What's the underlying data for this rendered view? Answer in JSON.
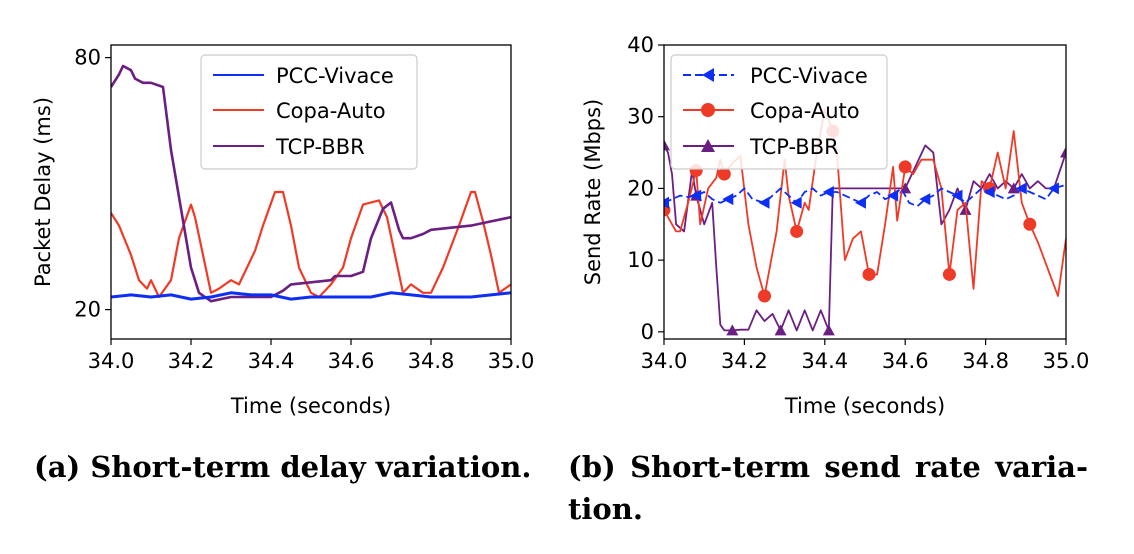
{
  "colors": {
    "pcc": "#0d2ef7",
    "copa": "#ef3a27",
    "bbr": "#6c1f82"
  },
  "captions": {
    "a": "(a) Short-term delay variation.",
    "b_line1": "(b) Short-term send rate varia-",
    "b_line2": "tion."
  },
  "chart_data": [
    {
      "type": "line",
      "xlabel": "Time (seconds)",
      "ylabel": "Packet Delay (ms)",
      "xlim": [
        34.0,
        35.0
      ],
      "ylim": [
        13,
        83
      ],
      "x_ticks": [
        "34.0",
        "34.2",
        "34.4",
        "34.6",
        "34.8",
        "35.0"
      ],
      "y_ticks": [
        "20",
        "80"
      ],
      "legend": {
        "position": "top-center"
      },
      "series": [
        {
          "name": "PCC-Vivace",
          "x": [
            34.0,
            34.05,
            34.1,
            34.15,
            34.2,
            34.25,
            34.3,
            34.35,
            34.4,
            34.45,
            34.5,
            34.55,
            34.6,
            34.65,
            34.7,
            34.75,
            34.8,
            34.85,
            34.9,
            34.95,
            35.0
          ],
          "y": [
            23,
            23.5,
            23,
            23.5,
            22.5,
            23,
            24,
            23.5,
            23.5,
            22.5,
            23,
            23,
            23,
            23,
            24,
            23.5,
            23,
            23,
            23,
            23.5,
            24
          ]
        },
        {
          "name": "Copa-Auto",
          "x": [
            34.0,
            34.02,
            34.05,
            34.07,
            34.09,
            34.1,
            34.12,
            34.15,
            34.17,
            34.2,
            34.21,
            34.23,
            34.25,
            34.27,
            34.3,
            34.32,
            34.36,
            34.38,
            34.41,
            34.43,
            34.45,
            34.47,
            34.5,
            34.52,
            34.55,
            34.58,
            34.6,
            34.63,
            34.67,
            34.69,
            34.71,
            34.73,
            34.75,
            34.78,
            34.8,
            34.83,
            34.87,
            34.9,
            34.91,
            34.93,
            34.95,
            34.97,
            35.0
          ],
          "y": [
            43,
            40,
            33,
            27,
            25,
            27,
            23,
            27,
            37,
            45,
            42,
            33,
            24,
            25,
            27,
            26,
            34,
            40,
            48,
            48,
            40,
            30,
            24,
            23,
            26,
            30,
            37,
            45,
            46,
            42,
            33,
            24,
            26,
            24,
            24,
            30,
            40,
            48,
            48,
            41,
            33,
            24,
            26
          ]
        },
        {
          "name": "TCP-BBR",
          "x": [
            34.0,
            34.02,
            34.03,
            34.05,
            34.06,
            34.08,
            34.1,
            34.13,
            34.15,
            34.2,
            34.22,
            34.25,
            34.3,
            34.4,
            34.43,
            34.45,
            34.5,
            34.55,
            34.56,
            34.6,
            34.63,
            34.65,
            34.68,
            34.7,
            34.72,
            34.73,
            34.75,
            34.78,
            34.8,
            34.85,
            34.9,
            34.95,
            35.0
          ],
          "y": [
            73,
            76,
            78,
            77,
            75,
            74,
            74,
            73,
            58,
            30,
            24,
            22,
            23,
            23,
            24.5,
            26,
            26.5,
            27,
            28,
            28,
            29,
            37,
            44,
            45.5,
            39,
            37,
            37,
            38,
            39,
            39.5,
            40,
            41,
            42
          ]
        }
      ]
    },
    {
      "type": "line",
      "xlabel": "Time (seconds)",
      "ylabel": "Send Rate (Mbps)",
      "xlim": [
        34.0,
        35.0
      ],
      "ylim": [
        -1,
        40
      ],
      "x_ticks": [
        "34.0",
        "34.2",
        "34.4",
        "34.6",
        "34.8",
        "35.0"
      ],
      "y_ticks": [
        "0",
        "10",
        "20",
        "30",
        "40"
      ],
      "legend": {
        "position": "top-left"
      },
      "series": [
        {
          "name": "PCC-Vivace",
          "marker": "triangle-left",
          "x": [
            34.0,
            34.02,
            34.04,
            34.06,
            34.08,
            34.1,
            34.12,
            34.14,
            34.16,
            34.18,
            34.2,
            34.22,
            34.25,
            34.27,
            34.29,
            34.31,
            34.33,
            34.35,
            34.37,
            34.39,
            34.41,
            34.43,
            34.45,
            34.47,
            34.49,
            34.51,
            34.53,
            34.55,
            34.57,
            34.59,
            34.61,
            34.63,
            34.65,
            34.67,
            34.69,
            34.71,
            34.73,
            34.75,
            34.77,
            34.79,
            34.81,
            34.83,
            34.85,
            34.87,
            34.89,
            34.91,
            34.93,
            34.95,
            34.97,
            35.0
          ],
          "y": [
            18,
            18.5,
            19,
            18.8,
            19,
            19.5,
            18.5,
            18,
            18.5,
            19,
            20,
            18.5,
            18,
            19,
            20,
            19,
            18,
            19.5,
            20,
            19,
            19.5,
            19.5,
            19,
            18.5,
            18,
            19,
            19.5,
            18.5,
            19,
            20,
            18,
            17.5,
            18.5,
            19,
            20,
            19.5,
            19,
            18,
            19,
            20,
            19.5,
            19,
            18.5,
            19,
            20,
            19.5,
            19,
            18.5,
            20,
            20.5
          ]
        },
        {
          "name": "Copa-Auto",
          "marker": "circle",
          "x": [
            34.0,
            34.02,
            34.03,
            34.04,
            34.06,
            34.08,
            34.09,
            34.11,
            34.13,
            34.14,
            34.15,
            34.17,
            34.19,
            34.21,
            34.23,
            34.25,
            34.27,
            34.28,
            34.3,
            34.31,
            34.33,
            34.35,
            34.36,
            34.38,
            34.4,
            34.42,
            34.43,
            34.45,
            34.47,
            34.49,
            34.51,
            34.53,
            34.55,
            34.57,
            34.58,
            34.6,
            34.62,
            34.64,
            34.67,
            34.69,
            34.71,
            34.73,
            34.75,
            34.77,
            34.79,
            34.81,
            34.83,
            34.85,
            34.87,
            34.89,
            34.91,
            34.93,
            34.96,
            34.98,
            35.0
          ],
          "y": [
            17,
            15,
            14,
            14,
            18,
            22.5,
            15,
            20,
            21.5,
            24,
            22,
            23.5,
            24.5,
            15,
            9,
            5,
            11,
            14,
            24,
            19,
            14,
            18,
            17,
            25,
            31,
            28,
            25,
            10,
            13,
            14,
            8,
            8,
            15,
            23,
            15.5,
            23,
            22,
            24,
            24,
            20,
            8,
            17,
            18,
            6,
            21,
            20,
            25,
            20,
            28,
            18,
            15,
            12.5,
            8,
            5,
            13
          ]
        },
        {
          "name": "TCP-BBR",
          "marker": "triangle-up",
          "x": [
            34.0,
            34.01,
            34.02,
            34.03,
            34.05,
            34.07,
            34.08,
            34.1,
            34.12,
            34.13,
            34.14,
            34.15,
            34.17,
            34.19,
            34.21,
            34.23,
            34.25,
            34.27,
            34.29,
            34.31,
            34.33,
            34.35,
            34.37,
            34.39,
            34.41,
            34.42,
            34.43,
            34.45,
            34.5,
            34.55,
            34.6,
            34.65,
            34.67,
            34.69,
            34.71,
            34.73,
            34.75,
            34.77,
            34.79,
            34.81,
            34.83,
            34.85,
            34.87,
            34.89,
            34.91,
            34.93,
            34.95,
            34.97,
            35.0
          ],
          "y": [
            26,
            25,
            22,
            15,
            14,
            22.5,
            19,
            15,
            18,
            9,
            1,
            0.2,
            0.2,
            0.3,
            0.3,
            3,
            1.5,
            2.5,
            0.2,
            3,
            0.2,
            3,
            0.2,
            3,
            0.2,
            20,
            20,
            20,
            20,
            20,
            20,
            26,
            25,
            15,
            17,
            20,
            17,
            21,
            20,
            22,
            20,
            21,
            20,
            22,
            20,
            21,
            20,
            20,
            25
          ]
        }
      ]
    }
  ]
}
